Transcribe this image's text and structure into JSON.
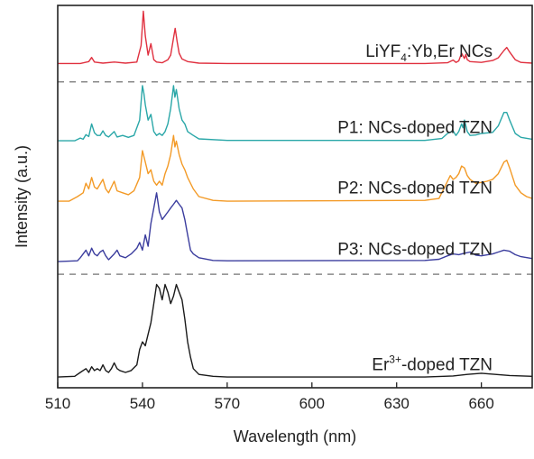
{
  "chart_data": {
    "type": "line",
    "xlabel": "Wavelength (nm)",
    "ylabel": "Intensity (a.u.)",
    "xlim": [
      510,
      678
    ],
    "ylim": [
      0,
      1
    ],
    "x_ticks": [
      510,
      540,
      570,
      600,
      630,
      660
    ],
    "y_ticks_shown": false,
    "grid": false,
    "legend": "none",
    "series": [
      {
        "label_parts": [
          "LiYF",
          "4",
          ":Yb,Er NCs"
        ],
        "color": "#e0303f",
        "points": [
          [
            510,
            0.848
          ],
          [
            518,
            0.848
          ],
          [
            521,
            0.853
          ],
          [
            522,
            0.864
          ],
          [
            523,
            0.852
          ],
          [
            526,
            0.849
          ],
          [
            530,
            0.852
          ],
          [
            534,
            0.849
          ],
          [
            538,
            0.852
          ],
          [
            539.5,
            0.895
          ],
          [
            540.3,
            0.985
          ],
          [
            541,
            0.92
          ],
          [
            542,
            0.87
          ],
          [
            543,
            0.9
          ],
          [
            544,
            0.858
          ],
          [
            545,
            0.852
          ],
          [
            547,
            0.85
          ],
          [
            549,
            0.858
          ],
          [
            550,
            0.87
          ],
          [
            551,
            0.915
          ],
          [
            551.6,
            0.94
          ],
          [
            552.3,
            0.905
          ],
          [
            553,
            0.875
          ],
          [
            554,
            0.86
          ],
          [
            556,
            0.853
          ],
          [
            560,
            0.849
          ],
          [
            570,
            0.848
          ],
          [
            640,
            0.848
          ],
          [
            648,
            0.85
          ],
          [
            650,
            0.857
          ],
          [
            651,
            0.851
          ],
          [
            652,
            0.855
          ],
          [
            653,
            0.875
          ],
          [
            654,
            0.861
          ],
          [
            654.5,
            0.872
          ],
          [
            655,
            0.858
          ],
          [
            656,
            0.853
          ],
          [
            660,
            0.851
          ],
          [
            664,
            0.856
          ],
          [
            666,
            0.863
          ],
          [
            668,
            0.882
          ],
          [
            669,
            0.89
          ],
          [
            670,
            0.878
          ],
          [
            672,
            0.858
          ],
          [
            674,
            0.851
          ],
          [
            678,
            0.849
          ]
        ]
      },
      {
        "label": "P1: NCs-doped TZN",
        "color": "#2aa7a8",
        "points": [
          [
            510,
            0.646
          ],
          [
            516,
            0.646
          ],
          [
            518,
            0.653
          ],
          [
            519,
            0.65
          ],
          [
            520,
            0.662
          ],
          [
            521,
            0.657
          ],
          [
            522,
            0.69
          ],
          [
            523,
            0.667
          ],
          [
            524,
            0.66
          ],
          [
            525,
            0.66
          ],
          [
            526,
            0.672
          ],
          [
            527,
            0.66
          ],
          [
            528,
            0.656
          ],
          [
            530,
            0.67
          ],
          [
            531,
            0.656
          ],
          [
            533,
            0.66
          ],
          [
            535,
            0.655
          ],
          [
            537,
            0.66
          ],
          [
            539,
            0.7
          ],
          [
            540,
            0.79
          ],
          [
            540.5,
            0.77
          ],
          [
            541,
            0.74
          ],
          [
            542,
            0.7
          ],
          [
            543,
            0.715
          ],
          [
            544,
            0.67
          ],
          [
            545,
            0.66
          ],
          [
            546,
            0.665
          ],
          [
            547,
            0.66
          ],
          [
            548,
            0.67
          ],
          [
            549,
            0.69
          ],
          [
            550,
            0.73
          ],
          [
            551,
            0.79
          ],
          [
            551.5,
            0.76
          ],
          [
            552,
            0.78
          ],
          [
            553,
            0.73
          ],
          [
            554,
            0.7
          ],
          [
            555,
            0.69
          ],
          [
            556,
            0.67
          ],
          [
            558,
            0.66
          ],
          [
            560,
            0.651
          ],
          [
            570,
            0.647
          ],
          [
            640,
            0.647
          ],
          [
            646,
            0.652
          ],
          [
            648,
            0.665
          ],
          [
            650,
            0.672
          ],
          [
            651,
            0.66
          ],
          [
            652,
            0.67
          ],
          [
            653,
            0.69
          ],
          [
            653.5,
            0.68
          ],
          [
            654,
            0.7
          ],
          [
            655,
            0.67
          ],
          [
            656,
            0.66
          ],
          [
            658,
            0.661
          ],
          [
            660,
            0.665
          ],
          [
            664,
            0.668
          ],
          [
            666,
            0.685
          ],
          [
            668,
            0.72
          ],
          [
            669,
            0.72
          ],
          [
            670,
            0.7
          ],
          [
            672,
            0.665
          ],
          [
            674,
            0.655
          ],
          [
            678,
            0.65
          ]
        ]
      },
      {
        "label": "P2: NCs-doped TZN",
        "color": "#f39a26",
        "points": [
          [
            510,
            0.488
          ],
          [
            514,
            0.488
          ],
          [
            517,
            0.5
          ],
          [
            519,
            0.51
          ],
          [
            520,
            0.535
          ],
          [
            521,
            0.52
          ],
          [
            522,
            0.55
          ],
          [
            523,
            0.525
          ],
          [
            524,
            0.52
          ],
          [
            526,
            0.545
          ],
          [
            527,
            0.52
          ],
          [
            528,
            0.51
          ],
          [
            530,
            0.54
          ],
          [
            531,
            0.515
          ],
          [
            533,
            0.51
          ],
          [
            535,
            0.505
          ],
          [
            537,
            0.515
          ],
          [
            539,
            0.55
          ],
          [
            540,
            0.62
          ],
          [
            541,
            0.59
          ],
          [
            542,
            0.56
          ],
          [
            543,
            0.57
          ],
          [
            544,
            0.54
          ],
          [
            545,
            0.53
          ],
          [
            546,
            0.54
          ],
          [
            547,
            0.53
          ],
          [
            548,
            0.56
          ],
          [
            549,
            0.58
          ],
          [
            550,
            0.61
          ],
          [
            551,
            0.66
          ],
          [
            551.5,
            0.63
          ],
          [
            552,
            0.645
          ],
          [
            553,
            0.61
          ],
          [
            554,
            0.585
          ],
          [
            555,
            0.57
          ],
          [
            556,
            0.55
          ],
          [
            558,
            0.52
          ],
          [
            560,
            0.5
          ],
          [
            565,
            0.49
          ],
          [
            570,
            0.488
          ],
          [
            640,
            0.49
          ],
          [
            645,
            0.495
          ],
          [
            648,
            0.54
          ],
          [
            649,
            0.555
          ],
          [
            650,
            0.545
          ],
          [
            651,
            0.55
          ],
          [
            652,
            0.56
          ],
          [
            653,
            0.58
          ],
          [
            654,
            0.575
          ],
          [
            655,
            0.555
          ],
          [
            656,
            0.545
          ],
          [
            658,
            0.535
          ],
          [
            660,
            0.537
          ],
          [
            662,
            0.54
          ],
          [
            664,
            0.545
          ],
          [
            666,
            0.56
          ],
          [
            668,
            0.59
          ],
          [
            669,
            0.595
          ],
          [
            670,
            0.575
          ],
          [
            672,
            0.53
          ],
          [
            674,
            0.51
          ],
          [
            676,
            0.5
          ],
          [
            678,
            0.495
          ]
        ]
      },
      {
        "label": "P3: NCs-doped TZN",
        "color": "#3b3d9e",
        "points": [
          [
            510,
            0.33
          ],
          [
            517,
            0.332
          ],
          [
            518,
            0.34
          ],
          [
            519,
            0.35
          ],
          [
            520,
            0.36
          ],
          [
            521,
            0.345
          ],
          [
            522,
            0.365
          ],
          [
            523,
            0.35
          ],
          [
            524,
            0.345
          ],
          [
            525,
            0.355
          ],
          [
            526,
            0.36
          ],
          [
            527,
            0.345
          ],
          [
            528,
            0.335
          ],
          [
            530,
            0.35
          ],
          [
            531,
            0.36
          ],
          [
            532,
            0.345
          ],
          [
            534,
            0.34
          ],
          [
            536,
            0.35
          ],
          [
            538,
            0.365
          ],
          [
            539,
            0.38
          ],
          [
            540,
            0.36
          ],
          [
            541,
            0.4
          ],
          [
            542,
            0.37
          ],
          [
            543,
            0.43
          ],
          [
            544,
            0.47
          ],
          [
            545,
            0.51
          ],
          [
            546,
            0.46
          ],
          [
            547,
            0.44
          ],
          [
            548,
            0.45
          ],
          [
            549,
            0.46
          ],
          [
            550,
            0.47
          ],
          [
            551,
            0.48
          ],
          [
            552,
            0.49
          ],
          [
            553,
            0.48
          ],
          [
            554,
            0.47
          ],
          [
            555,
            0.44
          ],
          [
            556,
            0.4
          ],
          [
            557,
            0.36
          ],
          [
            558,
            0.35
          ],
          [
            560,
            0.34
          ],
          [
            565,
            0.333
          ],
          [
            570,
            0.332
          ],
          [
            640,
            0.333
          ],
          [
            645,
            0.336
          ],
          [
            648,
            0.345
          ],
          [
            650,
            0.35
          ],
          [
            652,
            0.348
          ],
          [
            654,
            0.352
          ],
          [
            656,
            0.355
          ],
          [
            658,
            0.347
          ],
          [
            660,
            0.345
          ],
          [
            664,
            0.35
          ],
          [
            666,
            0.355
          ],
          [
            668,
            0.36
          ],
          [
            670,
            0.357
          ],
          [
            672,
            0.348
          ],
          [
            674,
            0.343
          ],
          [
            678,
            0.338
          ]
        ]
      },
      {
        "label_parts": [
          "Er",
          "3+",
          "-doped TZN"
        ],
        "color": "#1a1a1a",
        "points": [
          [
            510,
            0.028
          ],
          [
            516,
            0.03
          ],
          [
            518,
            0.04
          ],
          [
            520,
            0.05
          ],
          [
            521,
            0.04
          ],
          [
            522,
            0.055
          ],
          [
            523,
            0.045
          ],
          [
            524,
            0.05
          ],
          [
            525,
            0.045
          ],
          [
            526,
            0.06
          ],
          [
            527,
            0.045
          ],
          [
            528,
            0.04
          ],
          [
            529,
            0.05
          ],
          [
            530,
            0.065
          ],
          [
            531,
            0.05
          ],
          [
            532,
            0.045
          ],
          [
            534,
            0.04
          ],
          [
            536,
            0.045
          ],
          [
            538,
            0.06
          ],
          [
            539,
            0.1
          ],
          [
            540,
            0.12
          ],
          [
            541,
            0.11
          ],
          [
            542,
            0.14
          ],
          [
            543,
            0.17
          ],
          [
            544,
            0.22
          ],
          [
            545,
            0.27
          ],
          [
            546,
            0.26
          ],
          [
            547,
            0.23
          ],
          [
            548,
            0.27
          ],
          [
            549,
            0.25
          ],
          [
            550,
            0.22
          ],
          [
            551,
            0.24
          ],
          [
            552,
            0.27
          ],
          [
            553,
            0.25
          ],
          [
            554,
            0.23
          ],
          [
            555,
            0.18
          ],
          [
            556,
            0.12
          ],
          [
            557,
            0.08
          ],
          [
            558,
            0.05
          ],
          [
            560,
            0.035
          ],
          [
            565,
            0.03
          ],
          [
            570,
            0.028
          ],
          [
            640,
            0.028
          ],
          [
            650,
            0.031
          ],
          [
            655,
            0.035
          ],
          [
            660,
            0.038
          ],
          [
            665,
            0.035
          ],
          [
            670,
            0.032
          ],
          [
            678,
            0.03
          ]
        ]
      }
    ],
    "dividers": [
      {
        "y": 0.8,
        "style": "dashed",
        "color": "#8a8a8a"
      },
      {
        "y": 0.297,
        "style": "dashed",
        "color": "#8a8a8a"
      }
    ]
  }
}
